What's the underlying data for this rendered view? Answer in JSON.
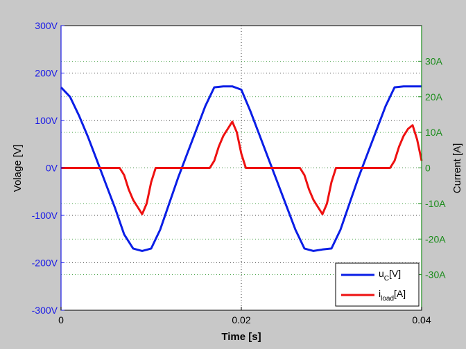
{
  "chart_data": {
    "type": "line",
    "xlabel": "Time [s]",
    "ylabel_left": "Volage [V]",
    "ylabel_right": "Current [A]",
    "xlim": [
      0,
      0.04
    ],
    "ylim_left": [
      -300,
      300
    ],
    "ylim_right": [
      -40,
      40
    ],
    "x_ticks": [
      0,
      0.02,
      0.04
    ],
    "x_tick_labels": [
      "0",
      "0.02",
      "0.04"
    ],
    "y_left_ticks": [
      300,
      200,
      100,
      0,
      -100,
      -200,
      -300
    ],
    "y_left_tick_labels": [
      "300V",
      "200V",
      "100V",
      "0V",
      "-100V",
      "-200V",
      "-300V"
    ],
    "y_right_ticks": [
      30,
      20,
      10,
      0,
      -10,
      -20,
      -30
    ],
    "y_right_tick_labels": [
      "30A",
      "20A",
      "10A",
      "0",
      "-10A",
      "-20A",
      "-30A"
    ],
    "grid": true,
    "legend_position": "bottom-right",
    "colors": {
      "left_axis": "#1a1ae6",
      "right_axis": "#1a8c1a",
      "voltage": "#0a1ee6",
      "current": "#ee1111",
      "background": "#c8c8c8",
      "plot_bg": "#ffffff"
    },
    "series": [
      {
        "name": "u_C[V]",
        "legend_main": "u",
        "legend_sub": "C",
        "legend_suffix": "[V]",
        "axis": "left",
        "x": [
          0,
          0.001,
          0.002,
          0.003,
          0.004,
          0.005,
          0.006,
          0.007,
          0.008,
          0.009,
          0.01,
          0.011,
          0.012,
          0.013,
          0.014,
          0.015,
          0.016,
          0.017,
          0.018,
          0.019,
          0.02,
          0.021,
          0.022,
          0.023,
          0.024,
          0.025,
          0.026,
          0.027,
          0.028,
          0.029,
          0.03,
          0.031,
          0.032,
          0.033,
          0.034,
          0.035,
          0.036,
          0.037,
          0.038,
          0.039,
          0.04
        ],
        "values": [
          170,
          150,
          110,
          65,
          15,
          -35,
          -85,
          -140,
          -170,
          -175,
          -170,
          -130,
          -75,
          -20,
          30,
          80,
          130,
          170,
          172,
          172,
          165,
          120,
          70,
          20,
          -30,
          -80,
          -130,
          -170,
          -175,
          -172,
          -170,
          -130,
          -75,
          -20,
          30,
          80,
          130,
          170,
          172,
          172,
          172
        ]
      },
      {
        "name": "i_load[A]",
        "legend_main": "i",
        "legend_sub": "load",
        "legend_suffix": "[A]",
        "axis": "right",
        "x": [
          0,
          0.001,
          0.002,
          0.003,
          0.004,
          0.005,
          0.006,
          0.0065,
          0.007,
          0.0075,
          0.008,
          0.0085,
          0.009,
          0.0095,
          0.01,
          0.0105,
          0.011,
          0.012,
          0.013,
          0.014,
          0.015,
          0.016,
          0.0165,
          0.017,
          0.0175,
          0.018,
          0.0185,
          0.019,
          0.0195,
          0.02,
          0.0205,
          0.021,
          0.022,
          0.023,
          0.024,
          0.025,
          0.026,
          0.0265,
          0.027,
          0.0275,
          0.028,
          0.0285,
          0.029,
          0.0295,
          0.03,
          0.0305,
          0.031,
          0.032,
          0.033,
          0.034,
          0.035,
          0.036,
          0.0365,
          0.037,
          0.0375,
          0.038,
          0.0385,
          0.039,
          0.0395,
          0.04
        ],
        "values": [
          0,
          0,
          0,
          0,
          0,
          0,
          0,
          0,
          -2,
          -6,
          -9,
          -11,
          -13,
          -10,
          -4,
          0,
          0,
          0,
          0,
          0,
          0,
          0,
          0,
          2,
          6,
          9,
          11,
          13,
          10,
          4,
          0,
          0,
          0,
          0,
          0,
          0,
          0,
          0,
          -2,
          -6,
          -9,
          -11,
          -13,
          -10,
          -4,
          0,
          0,
          0,
          0,
          0,
          0,
          0,
          0,
          2,
          6,
          9,
          11,
          12,
          8,
          2
        ]
      }
    ]
  }
}
